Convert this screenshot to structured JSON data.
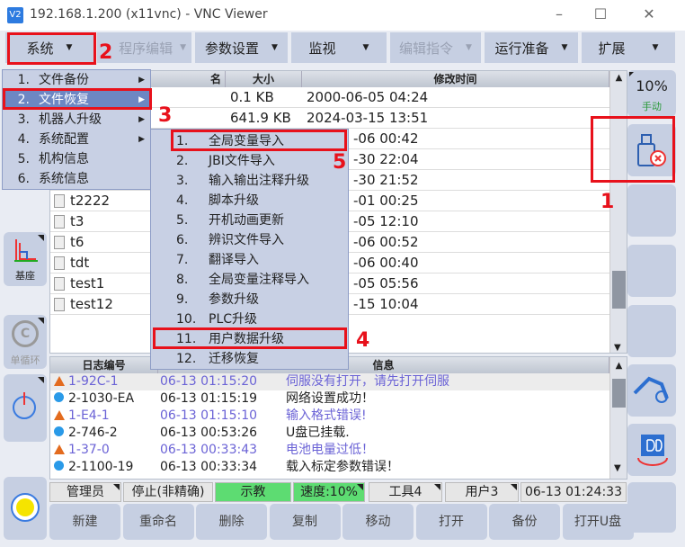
{
  "window": {
    "title": "192.168.1.200 (x11vnc) - VNC Viewer",
    "logo": "V2",
    "minimize": "–",
    "maximize": "☐",
    "close": "✕"
  },
  "menubar": [
    {
      "label": "系统",
      "enabled": true
    },
    {
      "label": "程序编辑",
      "enabled": false
    },
    {
      "label": "参数设置",
      "enabled": true
    },
    {
      "label": "监视",
      "enabled": true
    },
    {
      "label": "编辑指令",
      "enabled": false
    },
    {
      "label": "运行准备",
      "enabled": true
    },
    {
      "label": "扩展",
      "enabled": true
    }
  ],
  "system_menu": [
    {
      "num": "1.",
      "label": "文件备份",
      "sub": true
    },
    {
      "num": "2.",
      "label": "文件恢复",
      "sub": true,
      "highlighted": true
    },
    {
      "num": "3.",
      "label": "机器人升级",
      "sub": true
    },
    {
      "num": "4.",
      "label": "系统配置",
      "sub": true
    },
    {
      "num": "5.",
      "label": "机构信息",
      "sub": false
    },
    {
      "num": "6.",
      "label": "系统信息",
      "sub": false
    }
  ],
  "restore_submenu": [
    {
      "num": "1.",
      "label": "全局变量导入"
    },
    {
      "num": "2.",
      "label": "JBI文件导入"
    },
    {
      "num": "3.",
      "label": "输入输出注释升级"
    },
    {
      "num": "4.",
      "label": "脚本升级"
    },
    {
      "num": "5.",
      "label": "开机动画更新"
    },
    {
      "num": "6.",
      "label": "辨识文件导入"
    },
    {
      "num": "7.",
      "label": "翻译导入"
    },
    {
      "num": "8.",
      "label": "全局变量注释导入"
    },
    {
      "num": "9.",
      "label": "参数升级"
    },
    {
      "num": "10.",
      "label": "PLC升级"
    },
    {
      "num": "11.",
      "label": "用户数据升级"
    },
    {
      "num": "12.",
      "label": "迁移恢复"
    }
  ],
  "file_table": {
    "headers": [
      "名",
      "大小",
      "修改时间"
    ],
    "rows": [
      {
        "name": "",
        "size": "0.1 KB",
        "time": "2000-06-05 04:24"
      },
      {
        "name": "",
        "size": "641.9 KB",
        "time": "2024-03-15 13:51"
      },
      {
        "name": "",
        "size": "",
        "time": "-06 00:42"
      },
      {
        "name": "",
        "size": "",
        "time": "-30 22:04"
      },
      {
        "name": "",
        "size": "",
        "time": "-30 21:52"
      },
      {
        "name": "t2222",
        "size": "",
        "time": "-01 00:25"
      },
      {
        "name": "t3",
        "size": "",
        "time": "-05 12:10"
      },
      {
        "name": "t6",
        "size": "",
        "time": "-06 00:52"
      },
      {
        "name": "tdt",
        "size": "",
        "time": "-06 00:40"
      },
      {
        "name": "test1",
        "size": "",
        "time": "-05 05:56"
      },
      {
        "name": "test12",
        "size": "",
        "time": "-15 10:04"
      }
    ]
  },
  "log_table": {
    "headers": [
      "日志编号",
      "信息"
    ],
    "rows": [
      {
        "type": "warning",
        "code": "1-92C-1",
        "time": "06-13 01:15:20",
        "info": "伺服没有打开，请先打开伺服"
      },
      {
        "type": "info",
        "code": "2-1030-EA",
        "time": "06-13 01:15:19",
        "info": "网络设置成功！"
      },
      {
        "type": "warning",
        "code": "1-E4-1",
        "time": "06-13 01:15:10",
        "info": "输入格式错误!"
      },
      {
        "type": "info",
        "code": "2-746-2",
        "time": "06-13 00:53:26",
        "info": "U盘已挂载."
      },
      {
        "type": "warning",
        "code": "1-37-0",
        "time": "06-13 00:33:43",
        "info": "电池电量过低！"
      },
      {
        "type": "info",
        "code": "2-1100-19",
        "time": "06-13 00:33:34",
        "info": "载入标定参数错误！"
      }
    ]
  },
  "left_panel": {
    "base_label": "基座",
    "cycle_label": "单循环"
  },
  "right_panel": {
    "speed": "10%",
    "mode": "手动"
  },
  "status": {
    "user": "管理员",
    "state": "停止(非精确)",
    "mode": "示教",
    "speed": "速度:10%",
    "tool": "工具4",
    "user_frame": "用户3",
    "clock": "06-13 01:24:33"
  },
  "buttons": [
    "新建",
    "重命名",
    "删除",
    "复制",
    "移动",
    "打开",
    "备份",
    "打开U盘"
  ],
  "annotations": [
    "1",
    "2",
    "3",
    "4",
    "5"
  ],
  "colors": {
    "accent_red": "#e8111b",
    "panel": "#c6cfe2",
    "highlight": "#6d87c3",
    "status_green": "#5ddc72",
    "warning_text": "#6b63d6"
  }
}
